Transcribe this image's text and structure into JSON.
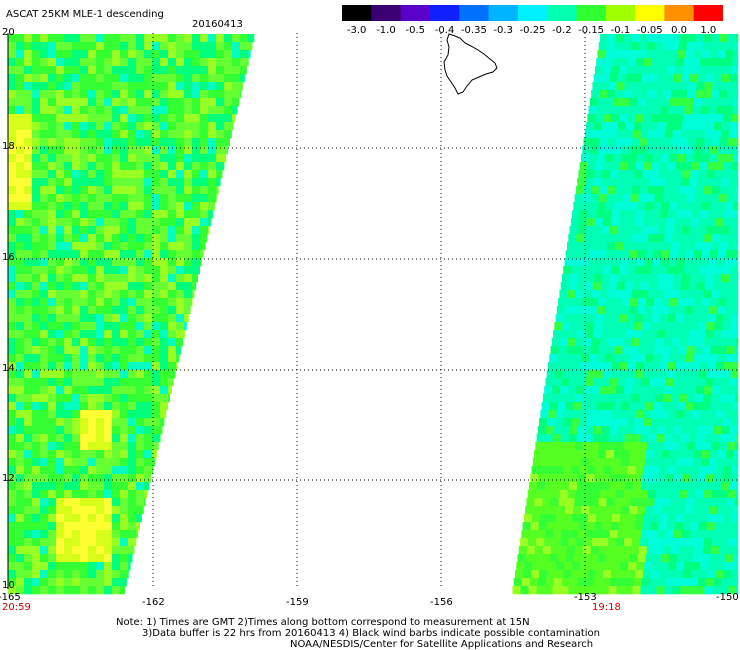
{
  "header": {
    "title": "ASCAT 25KM MLE-1 descending",
    "date": "20160413"
  },
  "colorbar": {
    "labels": [
      "-3.0",
      "-1.0",
      "-0.5",
      "-0.4",
      "-0.35",
      "-0.3",
      "-0.25",
      "-0.2",
      "-0.15",
      "-0.1",
      "-0.05",
      "0.0",
      "1.0"
    ],
    "colors": [
      "#000000",
      "#3a0073",
      "#5a00c8",
      "#1020ff",
      "#0070ff",
      "#00b4ff",
      "#00f0ff",
      "#00ffb0",
      "#30ff30",
      "#a0ff00",
      "#ffff00",
      "#ff9000",
      "#ff0000"
    ]
  },
  "map": {
    "lat_labels": [
      "20",
      "18",
      "16",
      "14",
      "12",
      "10"
    ],
    "lon_labels": [
      "-165",
      "-162",
      "-159",
      "-156",
      "-153",
      "-150"
    ],
    "time_left": "20:59",
    "time_right": "19:18",
    "time_color": "#cc0000"
  },
  "footer": {
    "line1": "Note: 1) Times are GMT 2)Times along bottom correspond to measurement at 15N",
    "line2": "3)Data buffer is 22 hrs from 20160413 4) Black wind barbs indicate possible contamination",
    "line3": "NOAA/NESDIS/Center for Satellite Applications and Research"
  }
}
